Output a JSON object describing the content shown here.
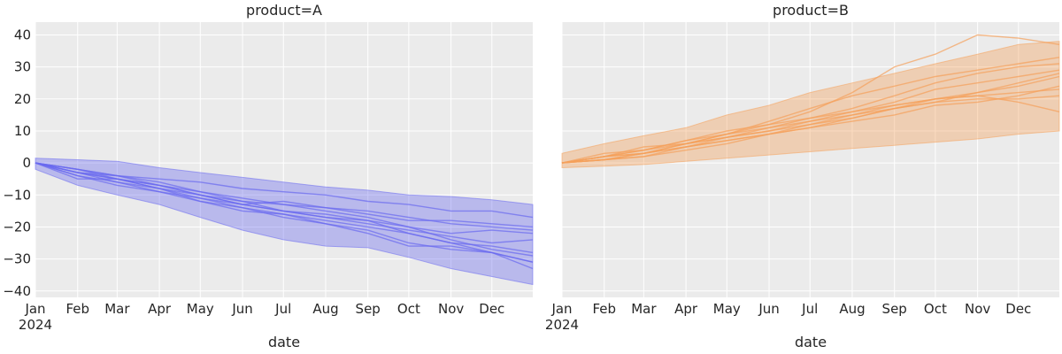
{
  "chart_data": [
    {
      "type": "line",
      "title": "product=A",
      "xlabel": "date",
      "ylabel": "",
      "x_tick_labels": [
        "Jan",
        "Feb",
        "Mar",
        "Apr",
        "May",
        "Jun",
        "Jul",
        "Aug",
        "Sep",
        "Oct",
        "Nov",
        "Dec"
      ],
      "x_year_label": "2024",
      "y_ticks": [
        -40,
        -30,
        -20,
        -10,
        0,
        10,
        20,
        30,
        40
      ],
      "ylim": [
        -42,
        44
      ],
      "xlim": [
        "2024-01-01",
        "2024-12-31"
      ],
      "grid": true,
      "color": "#6a6af0",
      "band": {
        "x": [
          "2024-01-01",
          "2024-02-01",
          "2024-03-01",
          "2024-04-01",
          "2024-05-01",
          "2024-06-01",
          "2024-07-01",
          "2024-08-01",
          "2024-09-01",
          "2024-10-01",
          "2024-11-01",
          "2024-12-01",
          "2024-12-31"
        ],
        "upper": [
          1.5,
          1.0,
          0.5,
          -1.5,
          -3.0,
          -4.5,
          -6.0,
          -7.5,
          -8.5,
          -10.0,
          -10.5,
          -11.5,
          -13.0
        ],
        "lower": [
          -2.0,
          -7.0,
          -10.0,
          -13.0,
          -17.0,
          -21.0,
          -24.0,
          -26.0,
          -26.5,
          -29.5,
          -33.0,
          -35.5,
          -38.0
        ]
      },
      "series": [
        {
          "x": [
            "2024-01-01",
            "2024-02-01",
            "2024-03-01",
            "2024-04-01",
            "2024-05-01",
            "2024-06-01",
            "2024-07-01",
            "2024-08-01",
            "2024-09-01",
            "2024-10-01",
            "2024-11-01",
            "2024-12-01",
            "2024-12-31"
          ],
          "values": [
            0,
            -3,
            -5,
            -7,
            -10,
            -13,
            -15,
            -17,
            -18,
            -20,
            -24,
            -27,
            -29
          ]
        },
        {
          "x": [
            "2024-01-01",
            "2024-02-01",
            "2024-03-01",
            "2024-04-01",
            "2024-05-01",
            "2024-06-01",
            "2024-07-01",
            "2024-08-01",
            "2024-09-01",
            "2024-10-01",
            "2024-11-01",
            "2024-12-01",
            "2024-12-31"
          ],
          "values": [
            0,
            -2,
            -4,
            -5,
            -6,
            -8,
            -9,
            -10,
            -12,
            -13,
            -15,
            -15,
            -17
          ]
        },
        {
          "x": [
            "2024-01-01",
            "2024-02-01",
            "2024-03-01",
            "2024-04-01",
            "2024-05-01",
            "2024-06-01",
            "2024-07-01",
            "2024-08-01",
            "2024-09-01",
            "2024-10-01",
            "2024-11-01",
            "2024-12-01",
            "2024-12-31"
          ],
          "values": [
            0,
            -4,
            -6,
            -9,
            -12,
            -14,
            -16,
            -19,
            -21,
            -25,
            -27,
            -28,
            -31
          ]
        },
        {
          "x": [
            "2024-01-01",
            "2024-02-01",
            "2024-03-01",
            "2024-04-01",
            "2024-05-01",
            "2024-06-01",
            "2024-07-01",
            "2024-08-01",
            "2024-09-01",
            "2024-10-01",
            "2024-11-01",
            "2024-12-01",
            "2024-12-31"
          ],
          "values": [
            0,
            -3,
            -5,
            -8,
            -11,
            -13,
            -12,
            -14,
            -16,
            -18,
            -18,
            -19,
            -20
          ]
        },
        {
          "x": [
            "2024-01-01",
            "2024-02-01",
            "2024-03-01",
            "2024-04-01",
            "2024-05-01",
            "2024-06-01",
            "2024-07-01",
            "2024-08-01",
            "2024-09-01",
            "2024-10-01",
            "2024-11-01",
            "2024-12-01",
            "2024-12-31"
          ],
          "values": [
            0,
            -5,
            -5,
            -8,
            -12,
            -15,
            -16,
            -18,
            -20,
            -22,
            -25,
            -28,
            -31
          ]
        },
        {
          "x": [
            "2024-01-01",
            "2024-02-01",
            "2024-03-01",
            "2024-04-01",
            "2024-05-01",
            "2024-06-01",
            "2024-07-01",
            "2024-08-01",
            "2024-09-01",
            "2024-10-01",
            "2024-11-01",
            "2024-12-01",
            "2024-12-31"
          ],
          "values": [
            0,
            -2,
            -4,
            -6,
            -9,
            -12,
            -13,
            -15,
            -17,
            -20,
            -22,
            -21,
            -22
          ]
        },
        {
          "x": [
            "2024-01-01",
            "2024-02-01",
            "2024-03-01",
            "2024-04-01",
            "2024-05-01",
            "2024-06-01",
            "2024-07-01",
            "2024-08-01",
            "2024-09-01",
            "2024-10-01",
            "2024-11-01",
            "2024-12-01",
            "2024-12-31"
          ],
          "values": [
            0,
            -4,
            -7,
            -9,
            -11,
            -14,
            -17,
            -19,
            -22,
            -26,
            -26,
            -28,
            -33
          ]
        },
        {
          "x": [
            "2024-01-01",
            "2024-02-01",
            "2024-03-01",
            "2024-04-01",
            "2024-05-01",
            "2024-06-01",
            "2024-07-01",
            "2024-08-01",
            "2024-09-01",
            "2024-10-01",
            "2024-11-01",
            "2024-12-01",
            "2024-12-31"
          ],
          "values": [
            0,
            -3,
            -6,
            -8,
            -10,
            -12,
            -15,
            -17,
            -19,
            -21,
            -23,
            -25,
            -24
          ]
        },
        {
          "x": [
            "2024-01-01",
            "2024-02-01",
            "2024-03-01",
            "2024-04-01",
            "2024-05-01",
            "2024-06-01",
            "2024-07-01",
            "2024-08-01",
            "2024-09-01",
            "2024-10-01",
            "2024-11-01",
            "2024-12-01",
            "2024-12-31"
          ],
          "values": [
            0,
            -3,
            -4,
            -7,
            -9,
            -11,
            -13,
            -14,
            -15,
            -17,
            -19,
            -20,
            -21
          ]
        },
        {
          "x": [
            "2024-01-01",
            "2024-02-01",
            "2024-03-01",
            "2024-04-01",
            "2024-05-01",
            "2024-06-01",
            "2024-07-01",
            "2024-08-01",
            "2024-09-01",
            "2024-10-01",
            "2024-11-01",
            "2024-12-01",
            "2024-12-31"
          ],
          "values": [
            0,
            -2,
            -5,
            -7,
            -10,
            -13,
            -15,
            -16,
            -18,
            -22,
            -25,
            -26,
            -28
          ]
        }
      ]
    },
    {
      "type": "line",
      "title": "product=B",
      "xlabel": "date",
      "ylabel": "",
      "x_tick_labels": [
        "Jan",
        "Feb",
        "Mar",
        "Apr",
        "May",
        "Jun",
        "Jul",
        "Aug",
        "Sep",
        "Oct",
        "Nov",
        "Dec"
      ],
      "x_year_label": "2024",
      "y_ticks": [
        -40,
        -30,
        -20,
        -10,
        0,
        10,
        20,
        30,
        40
      ],
      "ylim": [
        -42,
        44
      ],
      "xlim": [
        "2024-01-01",
        "2024-12-31"
      ],
      "grid": true,
      "shared_y": true,
      "color": "#f5a05a",
      "band": {
        "x": [
          "2024-01-01",
          "2024-02-01",
          "2024-03-01",
          "2024-04-01",
          "2024-05-01",
          "2024-06-01",
          "2024-07-01",
          "2024-08-01",
          "2024-09-01",
          "2024-10-01",
          "2024-11-01",
          "2024-12-01",
          "2024-12-31"
        ],
        "upper": [
          3.0,
          6.0,
          8.5,
          11.0,
          15.0,
          18.0,
          22.0,
          25.0,
          28.0,
          31.0,
          34.0,
          37.0,
          38.0
        ],
        "lower": [
          -1.5,
          -1.0,
          -0.5,
          0.5,
          1.5,
          2.5,
          3.5,
          4.5,
          5.5,
          6.5,
          7.5,
          9.0,
          10.0
        ]
      },
      "series": [
        {
          "x": [
            "2024-01-01",
            "2024-02-01",
            "2024-03-01",
            "2024-04-01",
            "2024-05-01",
            "2024-06-01",
            "2024-07-01",
            "2024-08-01",
            "2024-09-01",
            "2024-10-01",
            "2024-11-01",
            "2024-12-01",
            "2024-12-31"
          ],
          "values": [
            0,
            2,
            4,
            7,
            9,
            12,
            16,
            22,
            30,
            34,
            40,
            39,
            37
          ]
        },
        {
          "x": [
            "2024-01-01",
            "2024-02-01",
            "2024-03-01",
            "2024-04-01",
            "2024-05-01",
            "2024-06-01",
            "2024-07-01",
            "2024-08-01",
            "2024-09-01",
            "2024-10-01",
            "2024-11-01",
            "2024-12-01",
            "2024-12-31"
          ],
          "values": [
            0,
            1,
            3,
            6,
            9,
            13,
            17,
            21,
            24,
            27,
            29,
            31,
            33
          ]
        },
        {
          "x": [
            "2024-01-01",
            "2024-02-01",
            "2024-03-01",
            "2024-04-01",
            "2024-05-01",
            "2024-06-01",
            "2024-07-01",
            "2024-08-01",
            "2024-09-01",
            "2024-10-01",
            "2024-11-01",
            "2024-12-01",
            "2024-12-31"
          ],
          "values": [
            0,
            2,
            5,
            6,
            8,
            10,
            13,
            16,
            19,
            23,
            25,
            27,
            29
          ]
        },
        {
          "x": [
            "2024-01-01",
            "2024-02-01",
            "2024-03-01",
            "2024-04-01",
            "2024-05-01",
            "2024-06-01",
            "2024-07-01",
            "2024-08-01",
            "2024-09-01",
            "2024-10-01",
            "2024-11-01",
            "2024-12-01",
            "2024-12-31"
          ],
          "values": [
            0,
            1,
            2,
            5,
            7,
            9,
            11,
            14,
            17,
            20,
            22,
            24,
            27
          ]
        },
        {
          "x": [
            "2024-01-01",
            "2024-02-01",
            "2024-03-01",
            "2024-04-01",
            "2024-05-01",
            "2024-06-01",
            "2024-07-01",
            "2024-08-01",
            "2024-09-01",
            "2024-10-01",
            "2024-11-01",
            "2024-12-01",
            "2024-12-31"
          ],
          "values": [
            0,
            3,
            4,
            7,
            10,
            12,
            14,
            16,
            18,
            20,
            21,
            22,
            23
          ]
        },
        {
          "x": [
            "2024-01-01",
            "2024-02-01",
            "2024-03-01",
            "2024-04-01",
            "2024-05-01",
            "2024-06-01",
            "2024-07-01",
            "2024-08-01",
            "2024-09-01",
            "2024-10-01",
            "2024-11-01",
            "2024-12-01",
            "2024-12-31"
          ],
          "values": [
            0,
            1,
            3,
            5,
            8,
            10,
            12,
            15,
            17,
            19,
            20,
            20,
            21
          ]
        },
        {
          "x": [
            "2024-01-01",
            "2024-02-01",
            "2024-03-01",
            "2024-04-01",
            "2024-05-01",
            "2024-06-01",
            "2024-07-01",
            "2024-08-01",
            "2024-09-01",
            "2024-10-01",
            "2024-11-01",
            "2024-12-01",
            "2024-12-31"
          ],
          "values": [
            0,
            2,
            3,
            6,
            9,
            11,
            13,
            15,
            18,
            20,
            21,
            19,
            16
          ]
        },
        {
          "x": [
            "2024-01-01",
            "2024-02-01",
            "2024-03-01",
            "2024-04-01",
            "2024-05-01",
            "2024-06-01",
            "2024-07-01",
            "2024-08-01",
            "2024-09-01",
            "2024-10-01",
            "2024-11-01",
            "2024-12-01",
            "2024-12-31"
          ],
          "values": [
            0,
            1,
            2,
            4,
            6,
            9,
            11,
            13,
            15,
            18,
            19,
            21,
            24
          ]
        },
        {
          "x": [
            "2024-01-01",
            "2024-02-01",
            "2024-03-01",
            "2024-04-01",
            "2024-05-01",
            "2024-06-01",
            "2024-07-01",
            "2024-08-01",
            "2024-09-01",
            "2024-10-01",
            "2024-11-01",
            "2024-12-01",
            "2024-12-31"
          ],
          "values": [
            0,
            2,
            4,
            6,
            8,
            11,
            14,
            17,
            21,
            25,
            28,
            30,
            31
          ]
        },
        {
          "x": [
            "2024-01-01",
            "2024-02-01",
            "2024-03-01",
            "2024-04-01",
            "2024-05-01",
            "2024-06-01",
            "2024-07-01",
            "2024-08-01",
            "2024-09-01",
            "2024-10-01",
            "2024-11-01",
            "2024-12-01",
            "2024-12-31"
          ],
          "values": [
            0,
            2,
            3,
            5,
            7,
            9,
            12,
            14,
            17,
            19,
            22,
            25,
            28
          ]
        }
      ]
    }
  ]
}
